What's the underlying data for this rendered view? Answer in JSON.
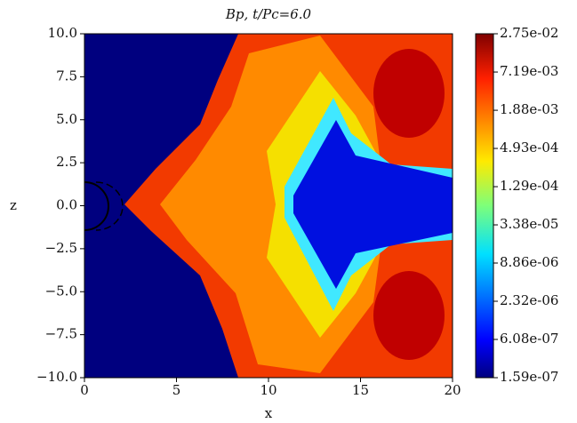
{
  "chart_data": {
    "type": "heatmap",
    "title": "Bp, t/Pc=6.0",
    "x_label": "x",
    "y_label": "z",
    "xlim": [
      0,
      20
    ],
    "ylim": [
      -10,
      10
    ],
    "xticks": [
      0,
      5,
      10,
      15,
      20
    ],
    "yticks": [
      {
        "value": -10,
        "label": "−10.0"
      },
      {
        "value": -7.5,
        "label": "−7.5"
      },
      {
        "value": -5,
        "label": "−5.0"
      },
      {
        "value": -2.5,
        "label": "−2.5"
      },
      {
        "value": 0,
        "label": "0.0"
      },
      {
        "value": 2.5,
        "label": "2.5"
      },
      {
        "value": 5,
        "label": "5.0"
      },
      {
        "value": 7.5,
        "label": "7.5"
      },
      {
        "value": 10,
        "label": "10.0"
      }
    ],
    "colorbar": {
      "colormap": "jet",
      "log_scale": true,
      "lim": [
        1.59e-07,
        0.0275
      ],
      "ticks": [
        {
          "value": 1.59e-07,
          "label": "1.59e-07"
        },
        {
          "value": 6.08e-07,
          "label": "6.08e-07"
        },
        {
          "value": 2.32e-06,
          "label": "2.32e-06"
        },
        {
          "value": 8.86e-06,
          "label": "8.86e-06"
        },
        {
          "value": 3.38e-05,
          "label": "3.38e-05"
        },
        {
          "value": 0.000129,
          "label": "1.29e-04"
        },
        {
          "value": 0.000493,
          "label": "4.93e-04"
        },
        {
          "value": 0.00188,
          "label": "1.88e-03"
        },
        {
          "value": 0.00719,
          "label": "7.19e-03"
        },
        {
          "value": 0.0275,
          "label": "2.75e-02"
        }
      ]
    }
  }
}
